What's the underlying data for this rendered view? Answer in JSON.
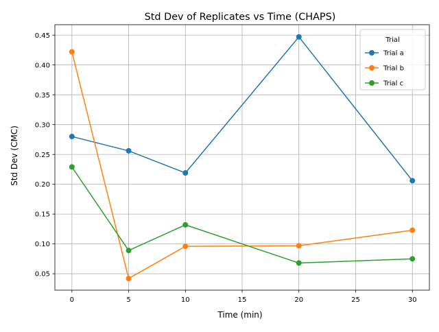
{
  "chart_data": {
    "type": "line",
    "title": "Std Dev of Replicates vs Time (CHAPS)",
    "xlabel": "Time (min)",
    "ylabel": "Std Dev (CMC)",
    "xlim": [
      -1.5,
      31.5
    ],
    "ylim": [
      0.0225,
      0.4675
    ],
    "xticks": [
      0,
      5,
      10,
      15,
      20,
      25,
      30
    ],
    "yticks": [
      0.05,
      0.1,
      0.15,
      0.2,
      0.25,
      0.3,
      0.35,
      0.4,
      0.45
    ],
    "ytick_labels": [
      "0.05",
      "0.10",
      "0.15",
      "0.20",
      "0.25",
      "0.30",
      "0.35",
      "0.40",
      "0.45"
    ],
    "grid": true,
    "legend": {
      "title": "Trial",
      "placement": "top-right"
    },
    "x": [
      0,
      5,
      10,
      20,
      30
    ],
    "series": [
      {
        "name": "Trial a",
        "color": "#1f77b4",
        "values": [
          0.28,
          0.256,
          0.219,
          0.447,
          0.206
        ]
      },
      {
        "name": "Trial b",
        "color": "#ff7f0e",
        "values": [
          0.422,
          0.042,
          0.096,
          0.097,
          0.123
        ]
      },
      {
        "name": "Trial c",
        "color": "#2ca02c",
        "values": [
          0.229,
          0.089,
          0.132,
          0.068,
          0.075
        ]
      }
    ]
  }
}
